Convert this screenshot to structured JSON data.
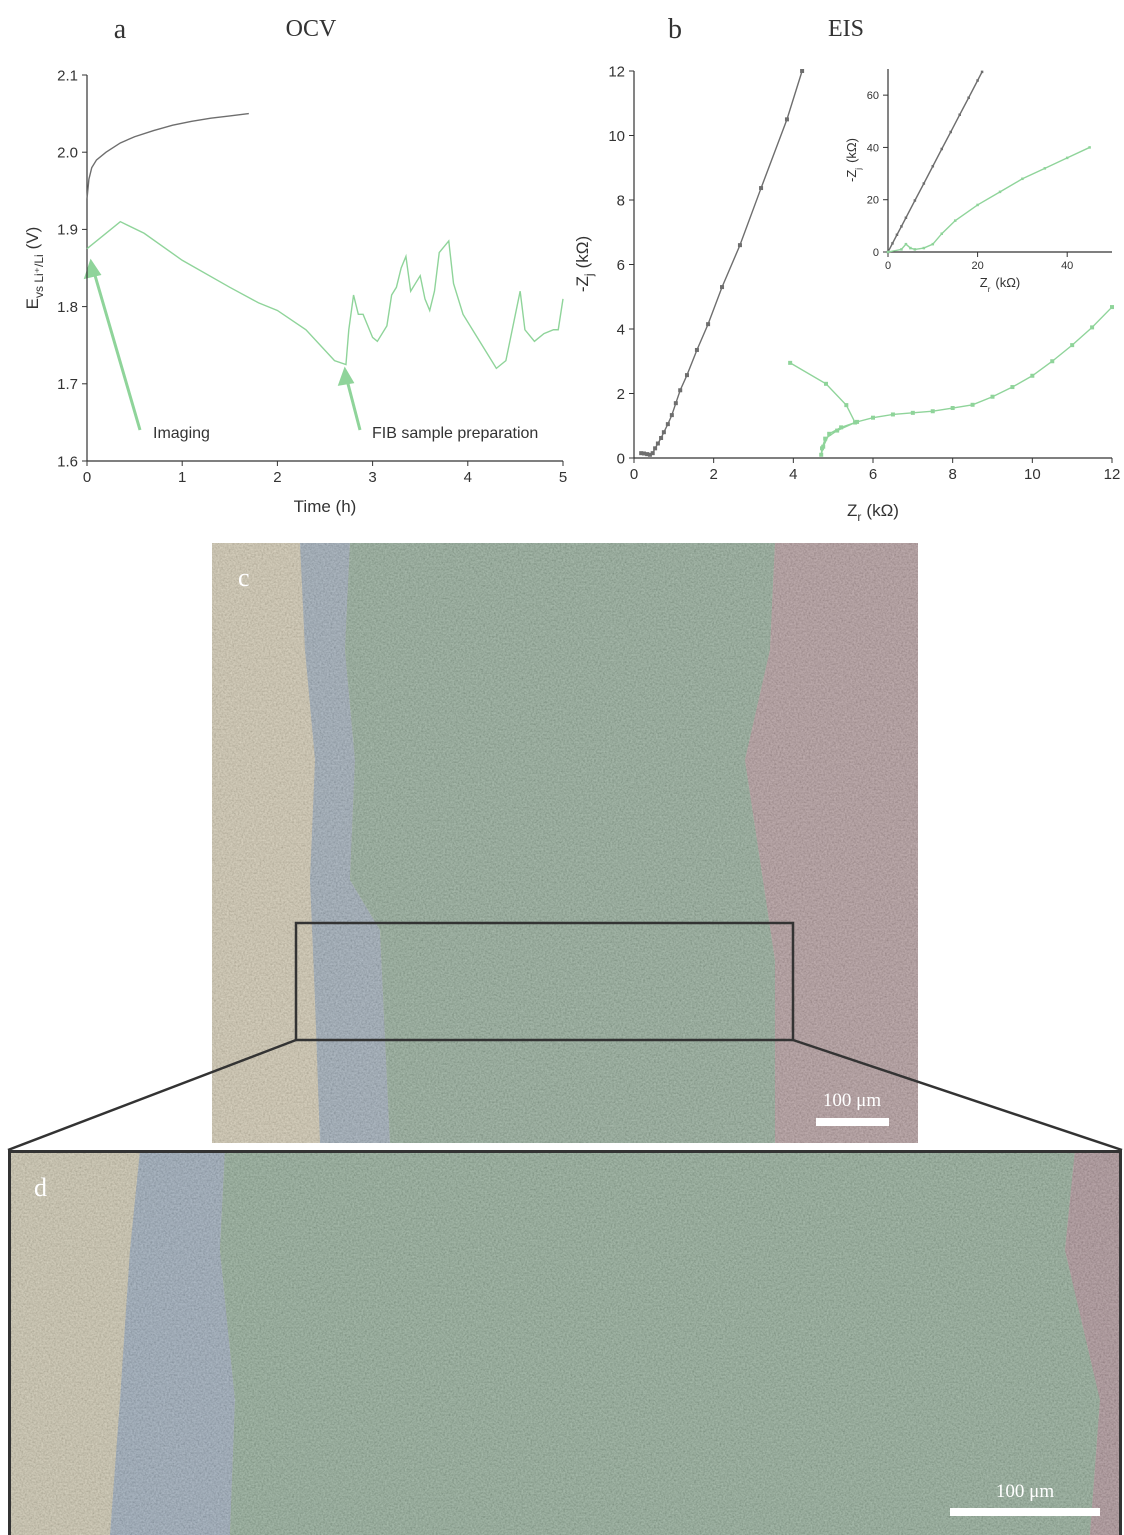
{
  "chart_data": [
    {
      "type": "line",
      "panel": "a",
      "title": "OCV",
      "xlabel": {
        "text": "Time (h)"
      },
      "ylabel": {
        "text": "E",
        "sub": "vs Li⁺/Li",
        "unit": "(V)"
      },
      "xlim": [
        0,
        5
      ],
      "xticks": [
        0,
        1,
        2,
        3,
        4,
        5
      ],
      "ylim": [
        1.6,
        2.1
      ],
      "yticks": [
        1.6,
        1.7,
        1.8,
        1.9,
        {
          "value": 2.0,
          "label": "2.0"
        },
        2.1
      ],
      "annotations": [
        "Imaging",
        "FIB sample preparation"
      ],
      "series": [
        {
          "color": "#6e6e6e",
          "x": [
            0,
            0.02,
            0.05,
            0.1,
            0.2,
            0.35,
            0.5,
            0.7,
            0.9,
            1.1,
            1.3,
            1.5,
            1.7
          ],
          "values": [
            1.94,
            1.965,
            1.98,
            1.99,
            2.0,
            2.012,
            2.02,
            2.028,
            2.035,
            2.04,
            2.044,
            2.047,
            2.05
          ]
        },
        {
          "color": "#8fd49a",
          "x": [
            0,
            0.35,
            0.6,
            1.0,
            1.5,
            1.8,
            2.0,
            2.3,
            2.6,
            2.72,
            2.75,
            2.8,
            2.85,
            2.9,
            3.0,
            3.05,
            3.15,
            3.2,
            3.25,
            3.3,
            3.35,
            3.4,
            3.45,
            3.5,
            3.55,
            3.6,
            3.65,
            3.7,
            3.8,
            3.85,
            3.95,
            4.1,
            4.3,
            4.4,
            4.5,
            4.55,
            4.6,
            4.7,
            4.8,
            4.9,
            4.95,
            5.0
          ],
          "values": [
            1.875,
            1.91,
            1.895,
            1.86,
            1.825,
            1.805,
            1.795,
            1.77,
            1.73,
            1.725,
            1.77,
            1.815,
            1.79,
            1.79,
            1.76,
            1.755,
            1.775,
            1.815,
            1.825,
            1.85,
            1.865,
            1.82,
            1.83,
            1.84,
            1.81,
            1.795,
            1.82,
            1.87,
            1.885,
            1.83,
            1.79,
            1.76,
            1.72,
            1.73,
            1.79,
            1.82,
            1.77,
            1.755,
            1.765,
            1.77,
            1.77,
            1.81
          ]
        }
      ]
    },
    {
      "type": "line",
      "markers": true,
      "panel": "b",
      "title": "EIS",
      "xlabel": {
        "text": "Z",
        "sub": "r",
        "unit": "(kΩ)"
      },
      "ylabel": {
        "text": "-Z",
        "sub": "j",
        "unit": "(kΩ)"
      },
      "xlim": [
        0,
        12
      ],
      "xticks": [
        0,
        2,
        4,
        6,
        8,
        10,
        12
      ],
      "ylim": [
        0,
        12
      ],
      "yticks": [
        0,
        2,
        4,
        6,
        8,
        10,
        12
      ],
      "series": [
        {
          "color": "#6e6e6e",
          "x": [
            0.18,
            0.25,
            0.33,
            0.4,
            0.47,
            0.53,
            0.6,
            0.68,
            0.75,
            0.85,
            0.95,
            1.05,
            1.16,
            1.33,
            1.58,
            1.86,
            2.21,
            2.66,
            3.19,
            3.84,
            4.22
          ],
          "values": [
            0.15,
            0.14,
            0.12,
            0.1,
            0.15,
            0.3,
            0.45,
            0.62,
            0.8,
            1.05,
            1.33,
            1.7,
            2.1,
            2.57,
            3.35,
            4.15,
            5.3,
            6.6,
            8.37,
            10.5,
            12
          ]
        },
        {
          "color": "#8fd49a",
          "x": [
            3.92,
            4.82,
            5.33,
            5.55,
            5.1,
            4.8,
            4.72,
            4.7,
            4.75,
            4.9,
            5.2,
            5.6,
            6.0,
            6.5,
            7.0,
            7.5,
            8.0,
            8.5,
            9.0,
            9.5,
            10.0,
            10.5,
            11.0,
            11.5,
            12
          ],
          "values": [
            2.95,
            2.3,
            1.64,
            1.1,
            0.85,
            0.6,
            0.3,
            0.1,
            0.35,
            0.75,
            0.95,
            1.12,
            1.25,
            1.35,
            1.4,
            1.45,
            1.55,
            1.65,
            1.9,
            2.2,
            2.55,
            3.0,
            3.5,
            4.05,
            4.68
          ]
        }
      ]
    },
    {
      "type": "line",
      "markers": true,
      "xlabel": {
        "text": "Z",
        "sub": "r",
        "unit": "(kΩ)"
      },
      "ylabel": {
        "text": "-Z",
        "sub": "j",
        "unit": "(kΩ)"
      },
      "xlim": [
        0,
        50
      ],
      "xticks": [
        0,
        20,
        40
      ],
      "ylim": [
        0,
        70
      ],
      "yticks": [
        0,
        20,
        40,
        60
      ],
      "series": [
        {
          "color": "#6e6e6e",
          "x": [
            0,
            1,
            2,
            3,
            4,
            6,
            8,
            10,
            12,
            14,
            16,
            18,
            20,
            21
          ],
          "values": [
            0,
            3.3,
            6.6,
            9.8,
            13.1,
            19.7,
            26.2,
            32.8,
            39.4,
            45.9,
            52.5,
            59,
            65.6,
            68.9
          ]
        },
        {
          "color": "#8fd49a",
          "x": [
            0,
            3,
            4,
            5,
            6,
            8,
            10,
            12,
            15,
            20,
            25,
            30,
            35,
            40,
            45
          ],
          "values": [
            0,
            1,
            3,
            1.5,
            1,
            1.5,
            3,
            7,
            12,
            18,
            23,
            28,
            32,
            36,
            40
          ]
        }
      ]
    }
  ],
  "images": [
    {
      "label": "c",
      "scale_bar": "100 μm"
    },
    {
      "label": "d",
      "scale_bar": "100 μm"
    }
  ]
}
